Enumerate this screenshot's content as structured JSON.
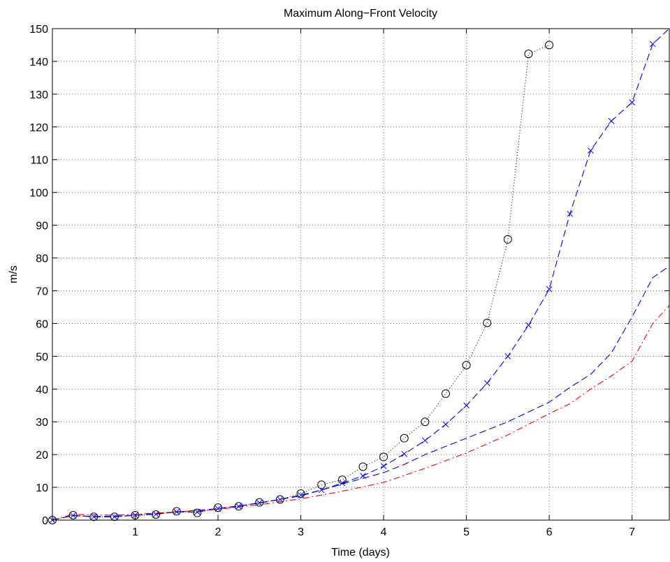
{
  "chart_data": {
    "type": "line",
    "title": "Maximum Along−Front Velocity",
    "xlabel": "Time (days)",
    "ylabel": "m/s",
    "xlim": [
      0,
      7.45
    ],
    "ylim": [
      0,
      150
    ],
    "grid": true,
    "x_ticks": [
      1,
      2,
      3,
      4,
      5,
      6,
      7
    ],
    "x_tick_labels": [
      "1",
      "2",
      "3",
      "4",
      "5",
      "6",
      "7"
    ],
    "y_ticks": [
      0,
      10,
      20,
      30,
      40,
      50,
      60,
      70,
      80,
      90,
      100,
      110,
      120,
      130,
      140,
      150
    ],
    "y_tick_labels": [
      "0",
      "10",
      "20",
      "30",
      "40",
      "50",
      "60",
      "70",
      "80",
      "90",
      "100",
      "110",
      "120",
      "130",
      "140",
      "150"
    ],
    "series": [
      {
        "style": "black dotted line with circle markers",
        "color": "#000000",
        "marker": "circle",
        "x": [
          0,
          0.25,
          0.5,
          0.75,
          1.0,
          1.25,
          1.5,
          1.75,
          2.0,
          2.25,
          2.5,
          2.75,
          3.0,
          3.25,
          3.5,
          3.75,
          4.0,
          4.25,
          4.5,
          4.75,
          5.0,
          5.25,
          5.5,
          5.75,
          6.0
        ],
        "y": [
          0,
          1.5,
          1.0,
          1.0,
          1.5,
          1.7,
          2.7,
          2.2,
          3.8,
          4.2,
          5.4,
          6.3,
          8.1,
          10.8,
          12.3,
          16.3,
          19.3,
          25.0,
          30.0,
          38.6,
          47.3,
          60.2,
          85.7,
          142.3,
          145.0
        ]
      },
      {
        "style": "blue dashed line with x markers",
        "color": "#0000ff",
        "marker": "x",
        "x": [
          0,
          0.25,
          0.5,
          0.75,
          1.0,
          1.25,
          1.5,
          1.75,
          2.0,
          2.25,
          2.5,
          2.75,
          3.0,
          3.25,
          3.5,
          3.75,
          4.0,
          4.25,
          4.5,
          4.75,
          5.0,
          5.25,
          5.5,
          5.75,
          6.0,
          6.25,
          6.5,
          6.75,
          7.0,
          7.25,
          7.45
        ],
        "y": [
          0,
          1.4,
          1.0,
          1.0,
          1.5,
          1.8,
          2.5,
          2.5,
          3.5,
          4.2,
          5.3,
          6.3,
          7.6,
          9.2,
          11.3,
          13.5,
          16.5,
          20.2,
          24.3,
          29.2,
          35.0,
          41.8,
          50.0,
          59.5,
          70.5,
          93.5,
          112.8,
          121.8,
          127.5,
          145.3,
          150.0
        ]
      },
      {
        "style": "blue dashed line",
        "color": "#0000ff",
        "marker": "none",
        "x": [
          0,
          0.25,
          0.5,
          0.75,
          1.0,
          1.5,
          2.0,
          2.5,
          3.0,
          3.5,
          4.0,
          4.25,
          4.5,
          5.0,
          5.5,
          6.0,
          6.25,
          6.5,
          6.75,
          7.0,
          7.25,
          7.45
        ],
        "y": [
          0,
          1.4,
          1.1,
          1.2,
          1.5,
          2.5,
          3.5,
          5.2,
          7.4,
          11.0,
          14.5,
          17.0,
          20.0,
          25.0,
          30.0,
          36.0,
          40.5,
          44.5,
          51.0,
          62.0,
          74.0,
          77.5
        ]
      },
      {
        "style": "red dash-dot line",
        "color": "#ff0000",
        "marker": "none",
        "x": [
          0,
          0.25,
          0.5,
          0.75,
          1.0,
          1.5,
          2.0,
          2.5,
          3.0,
          3.5,
          4.0,
          4.5,
          5.0,
          5.5,
          6.0,
          6.25,
          6.5,
          6.75,
          7.0,
          7.25,
          7.45
        ],
        "y": [
          0,
          1.8,
          1.6,
          1.5,
          1.8,
          2.5,
          3.3,
          4.7,
          6.5,
          8.8,
          11.5,
          15.8,
          20.5,
          26.0,
          32.5,
          35.5,
          40.0,
          44.0,
          48.5,
          60.0,
          65.5
        ]
      }
    ]
  }
}
